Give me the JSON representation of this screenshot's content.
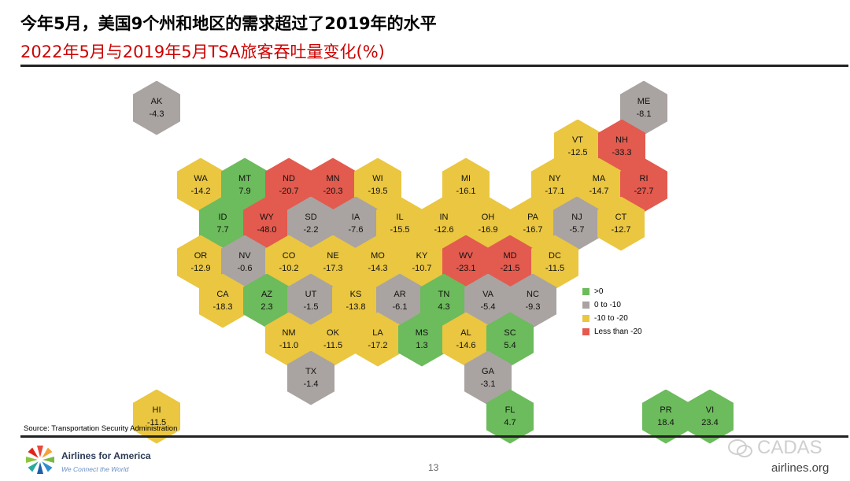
{
  "header": {
    "title": "今年5月，美国9个州和地区的需求超过了2019年的水平",
    "subtitle": "2022年5月与2019年5月TSA旅客吞吐量变化(%)"
  },
  "colors": {
    "gt0": "#6cbb5c",
    "zero_to_neg10": "#a9a3a1",
    "neg10_to_neg20": "#eac641",
    "lt_neg20": "#e35a4e"
  },
  "legend": [
    {
      "key": "gt0",
      "label": ">0"
    },
    {
      "key": "zero_to_neg10",
      "label": "0 to -10"
    },
    {
      "key": "neg10_to_neg20",
      "label": "-10 to -20"
    },
    {
      "key": "lt_neg20",
      "label": "Less than -20"
    }
  ],
  "states": [
    {
      "code": "AK",
      "value": "-4.3",
      "cat": "zero_to_neg10"
    },
    {
      "code": "ME",
      "value": "-8.1",
      "cat": "zero_to_neg10"
    },
    {
      "code": "VT",
      "value": "-12.5",
      "cat": "neg10_to_neg20"
    },
    {
      "code": "NH",
      "value": "-33.3",
      "cat": "lt_neg20"
    },
    {
      "code": "WA",
      "value": "-14.2",
      "cat": "neg10_to_neg20"
    },
    {
      "code": "MT",
      "value": "7.9",
      "cat": "gt0"
    },
    {
      "code": "ND",
      "value": "-20.7",
      "cat": "lt_neg20"
    },
    {
      "code": "MN",
      "value": "-20.3",
      "cat": "lt_neg20"
    },
    {
      "code": "WI",
      "value": "-19.5",
      "cat": "neg10_to_neg20"
    },
    {
      "code": "MI",
      "value": "-16.1",
      "cat": "neg10_to_neg20"
    },
    {
      "code": "NY",
      "value": "-17.1",
      "cat": "neg10_to_neg20"
    },
    {
      "code": "MA",
      "value": "-14.7",
      "cat": "neg10_to_neg20"
    },
    {
      "code": "RI",
      "value": "-27.7",
      "cat": "lt_neg20"
    },
    {
      "code": "ID",
      "value": "7.7",
      "cat": "gt0"
    },
    {
      "code": "WY",
      "value": "-48.0",
      "cat": "lt_neg20"
    },
    {
      "code": "SD",
      "value": "-2.2",
      "cat": "zero_to_neg10"
    },
    {
      "code": "IA",
      "value": "-7.6",
      "cat": "zero_to_neg10"
    },
    {
      "code": "IL",
      "value": "-15.5",
      "cat": "neg10_to_neg20"
    },
    {
      "code": "IN",
      "value": "-12.6",
      "cat": "neg10_to_neg20"
    },
    {
      "code": "OH",
      "value": "-16.9",
      "cat": "neg10_to_neg20"
    },
    {
      "code": "PA",
      "value": "-16.7",
      "cat": "neg10_to_neg20"
    },
    {
      "code": "NJ",
      "value": "-5.7",
      "cat": "zero_to_neg10"
    },
    {
      "code": "CT",
      "value": "-12.7",
      "cat": "neg10_to_neg20"
    },
    {
      "code": "OR",
      "value": "-12.9",
      "cat": "neg10_to_neg20"
    },
    {
      "code": "NV",
      "value": "-0.6",
      "cat": "zero_to_neg10"
    },
    {
      "code": "CO",
      "value": "-10.2",
      "cat": "neg10_to_neg20"
    },
    {
      "code": "NE",
      "value": "-17.3",
      "cat": "neg10_to_neg20"
    },
    {
      "code": "MO",
      "value": "-14.3",
      "cat": "neg10_to_neg20"
    },
    {
      "code": "KY",
      "value": "-10.7",
      "cat": "neg10_to_neg20"
    },
    {
      "code": "WV",
      "value": "-23.1",
      "cat": "lt_neg20"
    },
    {
      "code": "MD",
      "value": "-21.5",
      "cat": "lt_neg20"
    },
    {
      "code": "DC",
      "value": "-11.5",
      "cat": "neg10_to_neg20"
    },
    {
      "code": "CA",
      "value": "-18.3",
      "cat": "neg10_to_neg20"
    },
    {
      "code": "AZ",
      "value": "2.3",
      "cat": "gt0"
    },
    {
      "code": "UT",
      "value": "-1.5",
      "cat": "zero_to_neg10"
    },
    {
      "code": "KS",
      "value": "-13.8",
      "cat": "neg10_to_neg20"
    },
    {
      "code": "AR",
      "value": "-6.1",
      "cat": "zero_to_neg10"
    },
    {
      "code": "TN",
      "value": "4.3",
      "cat": "gt0"
    },
    {
      "code": "VA",
      "value": "-5.4",
      "cat": "zero_to_neg10"
    },
    {
      "code": "NC",
      "value": "-9.3",
      "cat": "zero_to_neg10"
    },
    {
      "code": "NM",
      "value": "-11.0",
      "cat": "neg10_to_neg20"
    },
    {
      "code": "OK",
      "value": "-11.5",
      "cat": "neg10_to_neg20"
    },
    {
      "code": "LA",
      "value": "-17.2",
      "cat": "neg10_to_neg20"
    },
    {
      "code": "MS",
      "value": "1.3",
      "cat": "gt0"
    },
    {
      "code": "AL",
      "value": "-14.6",
      "cat": "neg10_to_neg20"
    },
    {
      "code": "SC",
      "value": "5.4",
      "cat": "gt0"
    },
    {
      "code": "TX",
      "value": "-1.4",
      "cat": "zero_to_neg10"
    },
    {
      "code": "GA",
      "value": "-3.1",
      "cat": "zero_to_neg10"
    },
    {
      "code": "HI",
      "value": "-11.5",
      "cat": "neg10_to_neg20"
    },
    {
      "code": "FL",
      "value": "4.7",
      "cat": "gt0"
    },
    {
      "code": "PR",
      "value": "18.4",
      "cat": "gt0"
    },
    {
      "code": "VI",
      "value": "23.4",
      "cat": "gt0"
    }
  ],
  "footer": {
    "source": "Source: Transportation Security Administration",
    "brand": "Airlines for America",
    "tagline": "We Connect the World",
    "page_number": "13",
    "watermark": "CADAS",
    "website": "airlines.org"
  }
}
